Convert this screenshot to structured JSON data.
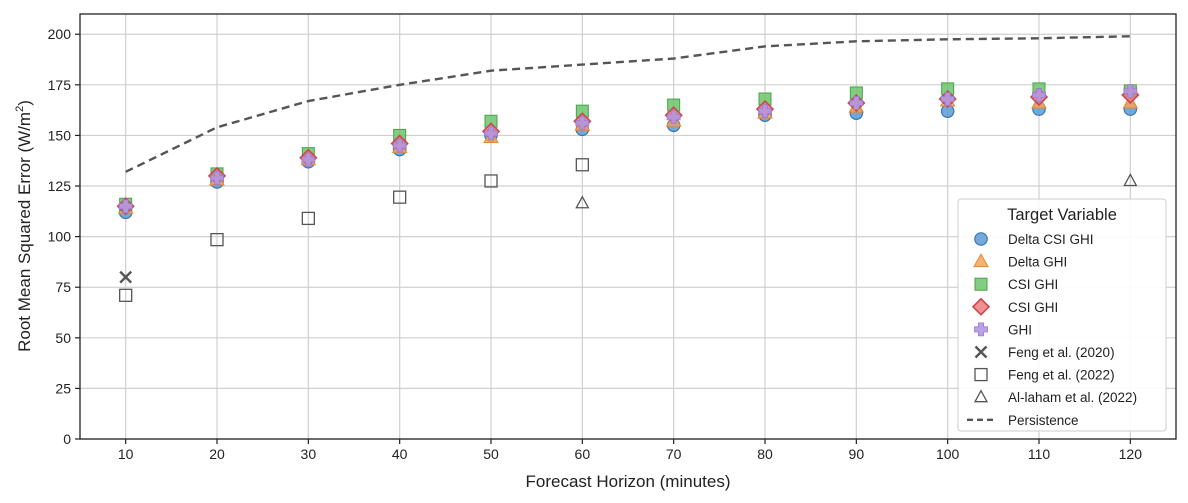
{
  "chart_data": {
    "type": "scatter",
    "title": "",
    "xlabel": "Forecast Horizon (minutes)",
    "ylabel_main": "Root Mean Squared Error (W/m",
    "ylabel_sup": "2",
    "ylabel_end": ")",
    "xlim": [
      5,
      125
    ],
    "ylim": [
      0,
      210
    ],
    "xticks": [
      10,
      20,
      30,
      40,
      50,
      60,
      70,
      80,
      90,
      100,
      110,
      120
    ],
    "yticks": [
      0,
      25,
      50,
      75,
      100,
      125,
      150,
      175,
      200
    ],
    "grid": true,
    "legend_title": "Target Variable",
    "legend_position": "lower-right",
    "series": [
      {
        "name": "Delta CSI GHI",
        "marker": "circle",
        "color": "#5b9bd5",
        "edge": "#3b74b0",
        "x": [
          10,
          20,
          30,
          40,
          50,
          60,
          70,
          80,
          90,
          100,
          110,
          120
        ],
        "y": [
          112,
          127,
          137,
          143,
          150,
          153,
          155,
          160,
          161,
          162,
          163,
          163
        ]
      },
      {
        "name": "Delta GHI",
        "marker": "triangle",
        "color": "#f5a55a",
        "edge": "#e08a3c",
        "x": [
          10,
          20,
          30,
          40,
          50,
          60,
          70,
          80,
          90,
          100,
          110,
          120
        ],
        "y": [
          114,
          128,
          138,
          144,
          149,
          155,
          157,
          161,
          164,
          167,
          166,
          166
        ]
      },
      {
        "name": "CSI GHI",
        "marker": "square",
        "color": "#6cc46c",
        "edge": "#47a347",
        "x": [
          10,
          20,
          30,
          40,
          50,
          60,
          70,
          80,
          90,
          100,
          110,
          120
        ],
        "y": [
          116,
          131,
          141,
          150,
          157,
          162,
          165,
          168,
          171,
          173,
          173,
          172
        ]
      },
      {
        "name": "CSI GHI",
        "marker": "diamond",
        "color": "#e8767a",
        "edge": "#d0454b",
        "x": [
          10,
          20,
          30,
          40,
          50,
          60,
          70,
          80,
          90,
          100,
          110,
          120
        ],
        "y": [
          115,
          130,
          139,
          146,
          152,
          157,
          160,
          163,
          166,
          168,
          169,
          170
        ]
      },
      {
        "name": "GHI",
        "marker": "plus",
        "color": "#b497e0",
        "edge": "#9b7bd0",
        "x": [
          10,
          20,
          30,
          40,
          50,
          60,
          70,
          80,
          90,
          100,
          110,
          120
        ],
        "y": [
          115,
          129,
          138,
          145,
          151,
          156,
          159,
          162,
          166,
          168,
          170,
          172
        ]
      },
      {
        "name": "Feng et al. (2020)",
        "marker": "x",
        "color": "#555555",
        "edge": "#555555",
        "x": [
          10
        ],
        "y": [
          80
        ]
      },
      {
        "name": "Feng et al. (2022)",
        "marker": "open-square",
        "color": "none",
        "edge": "#555555",
        "x": [
          10,
          20,
          30,
          40,
          50,
          60
        ],
        "y": [
          71,
          98.5,
          109,
          119.5,
          127.5,
          135.5
        ]
      },
      {
        "name": "Al-laham et al. (2022)",
        "marker": "open-triangle",
        "color": "none",
        "edge": "#555555",
        "x": [
          60,
          120
        ],
        "y": [
          116.5,
          127.5
        ]
      },
      {
        "name": "Persistence",
        "marker": "dashed-line",
        "color": "#555555",
        "edge": "#555555",
        "x": [
          10,
          20,
          30,
          40,
          50,
          60,
          70,
          80,
          90,
          100,
          110,
          120
        ],
        "y": [
          132,
          154,
          167,
          175,
          182,
          185,
          188,
          194,
          196.5,
          197.5,
          198,
          199
        ]
      }
    ]
  }
}
